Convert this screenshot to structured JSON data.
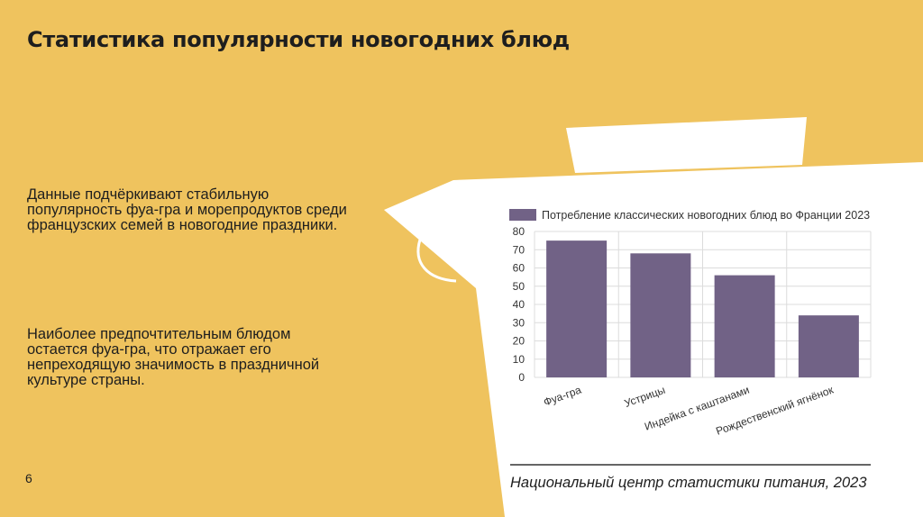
{
  "slide": {
    "title": "Статистика популярности новогодних блюд",
    "paragraphs": [
      "Данные подчёркивают стабильную популярность фуа-гра и морепродуктов среди французских семей в новогодние праздники.",
      "Наиболее предпочтительным блюдом остается фуа-гра, что отражает его непреходящую значимость в праздничной культуре страны."
    ],
    "page_number": "6",
    "source_caption": "Национальный центр статистики питания, 2023"
  },
  "colors": {
    "background": "#efc35e",
    "card": "#ffffff",
    "bar": "#716286",
    "grid": "#dcdcdc"
  },
  "chart_data": {
    "type": "bar",
    "categories": [
      "Фуа-гра",
      "Устрицы",
      "Индейка с каштанами",
      "Рождественский ягнёнок"
    ],
    "series": [
      {
        "name": "Потребление классических новогодних блюд во Франции 2023",
        "values": [
          75,
          68,
          56,
          34
        ]
      }
    ],
    "yticks": [
      0,
      10,
      20,
      30,
      40,
      50,
      60,
      70,
      80
    ],
    "ylim": [
      0,
      80
    ],
    "grid": true,
    "legend_position": "top",
    "xlabel": "",
    "ylabel": ""
  }
}
